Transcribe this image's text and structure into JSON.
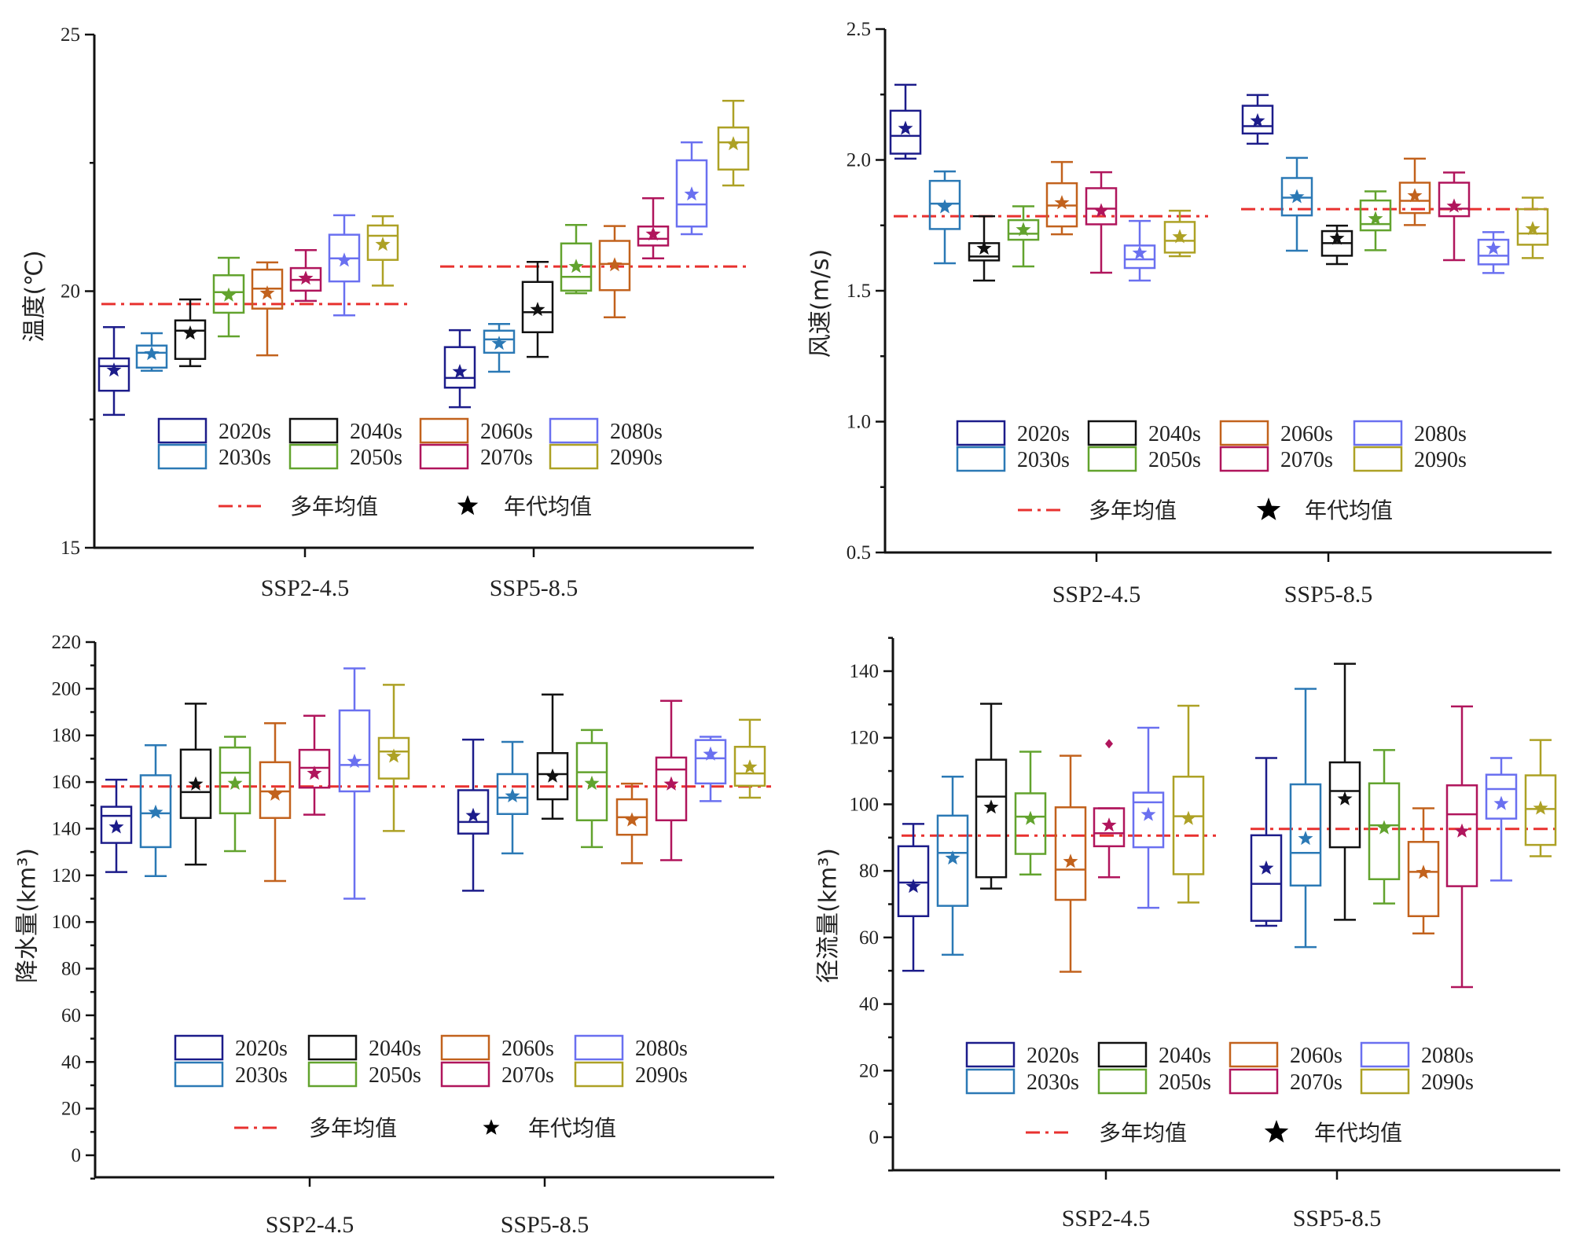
{
  "chart_data": [
    {
      "type": "box",
      "title": "",
      "ylabel": "温度(℃)",
      "xlabel": "",
      "ylim": [
        15,
        25
      ],
      "yticks": [
        15,
        20,
        25
      ],
      "ytick_labels": [
        "15",
        "20",
        "25"
      ],
      "minor_yticks": [
        17.5,
        22.5
      ],
      "categories": [
        "SSP2-4.5",
        "SSP5-8.5"
      ],
      "series_names": [
        "2020s",
        "2030s",
        "2040s",
        "2050s",
        "2060s",
        "2070s",
        "2080s",
        "2090s"
      ],
      "groups": [
        {
          "scenario": "SSP2-4.5",
          "multi_year_mean": 19.75,
          "boxes": [
            {
              "decade": "2020s",
              "min": 17.59,
              "q1": 18.06,
              "median": 18.54,
              "q3": 18.69,
              "max": 19.3,
              "mean": 18.46
            },
            {
              "decade": "2030s",
              "min": 18.45,
              "q1": 18.51,
              "median": 18.8,
              "q3": 18.94,
              "max": 19.18,
              "mean": 18.78
            },
            {
              "decade": "2040s",
              "min": 18.54,
              "q1": 18.68,
              "median": 19.23,
              "q3": 19.43,
              "max": 19.84,
              "mean": 19.18
            },
            {
              "decade": "2050s",
              "min": 19.12,
              "q1": 19.58,
              "median": 19.98,
              "q3": 20.31,
              "max": 20.65,
              "mean": 19.92
            },
            {
              "decade": "2060s",
              "min": 18.75,
              "q1": 19.66,
              "median": 20.05,
              "q3": 20.42,
              "max": 20.56,
              "mean": 19.96
            },
            {
              "decade": "2070s",
              "min": 19.81,
              "q1": 20.01,
              "median": 20.22,
              "q3": 20.45,
              "max": 20.8,
              "mean": 20.25
            },
            {
              "decade": "2080s",
              "min": 19.53,
              "q1": 20.19,
              "median": 20.64,
              "q3": 21.1,
              "max": 21.48,
              "mean": 20.6
            },
            {
              "decade": "2090s",
              "min": 20.11,
              "q1": 20.61,
              "median": 21.08,
              "q3": 21.28,
              "max": 21.46,
              "mean": 20.91
            }
          ]
        },
        {
          "scenario": "SSP5-8.5",
          "multi_year_mean": 20.48,
          "boxes": [
            {
              "decade": "2020s",
              "min": 17.74,
              "q1": 18.12,
              "median": 18.31,
              "q3": 18.91,
              "max": 19.24,
              "mean": 18.43
            },
            {
              "decade": "2030s",
              "min": 18.43,
              "q1": 18.8,
              "median": 19.06,
              "q3": 19.23,
              "max": 19.36,
              "mean": 18.98
            },
            {
              "decade": "2040s",
              "min": 18.72,
              "q1": 19.2,
              "median": 19.59,
              "q3": 20.18,
              "max": 20.57,
              "mean": 19.64
            },
            {
              "decade": "2050s",
              "min": 19.96,
              "q1": 20.01,
              "median": 20.28,
              "q3": 20.93,
              "max": 21.29,
              "mean": 20.48
            },
            {
              "decade": "2060s",
              "min": 19.49,
              "q1": 20.02,
              "median": 20.53,
              "q3": 20.98,
              "max": 21.27,
              "mean": 20.51
            },
            {
              "decade": "2070s",
              "min": 20.64,
              "q1": 20.89,
              "median": 21.02,
              "q3": 21.26,
              "max": 21.81,
              "mean": 21.11
            },
            {
              "decade": "2080s",
              "min": 21.11,
              "q1": 21.26,
              "median": 21.69,
              "q3": 22.55,
              "max": 22.9,
              "mean": 21.89
            },
            {
              "decade": "2090s",
              "min": 22.06,
              "q1": 22.37,
              "median": 22.9,
              "q3": 23.19,
              "max": 23.71,
              "mean": 22.87
            }
          ]
        }
      ]
    },
    {
      "type": "box",
      "title": "",
      "ylabel": "风速(m/s)",
      "xlabel": "",
      "ylim": [
        0.5,
        2.5
      ],
      "yticks": [
        0.5,
        1.0,
        1.5,
        2.0,
        2.5
      ],
      "ytick_labels": [
        "0.5",
        "1.0",
        "1.5",
        "2.0",
        "2.5"
      ],
      "minor_yticks": [
        0.75,
        1.25,
        1.75,
        2.25
      ],
      "categories": [
        "SSP2-4.5",
        "SSP5-8.5"
      ],
      "series_names": [
        "2020s",
        "2030s",
        "2040s",
        "2050s",
        "2060s",
        "2070s",
        "2080s",
        "2090s"
      ],
      "groups": [
        {
          "scenario": "SSP2-4.5",
          "multi_year_mean": 1.785,
          "boxes": [
            {
              "decade": "2020s",
              "min": 2.005,
              "q1": 2.024,
              "median": 2.092,
              "q3": 2.188,
              "max": 2.287,
              "mean": 2.12
            },
            {
              "decade": "2030s",
              "min": 1.605,
              "q1": 1.736,
              "median": 1.833,
              "q3": 1.92,
              "max": 1.956,
              "mean": 1.82
            },
            {
              "decade": "2040s",
              "min": 1.539,
              "q1": 1.616,
              "median": 1.631,
              "q3": 1.682,
              "max": 1.785,
              "mean": 1.662
            },
            {
              "decade": "2050s",
              "min": 1.593,
              "q1": 1.695,
              "median": 1.718,
              "q3": 1.77,
              "max": 1.823,
              "mean": 1.733
            },
            {
              "decade": "2060s",
              "min": 1.716,
              "q1": 1.746,
              "median": 1.826,
              "q3": 1.911,
              "max": 1.992,
              "mean": 1.836
            },
            {
              "decade": "2070s",
              "min": 1.569,
              "q1": 1.754,
              "median": 1.814,
              "q3": 1.892,
              "max": 1.953,
              "mean": 1.805
            },
            {
              "decade": "2080s",
              "min": 1.539,
              "q1": 1.587,
              "median": 1.62,
              "q3": 1.673,
              "max": 1.767,
              "mean": 1.644
            },
            {
              "decade": "2090s",
              "min": 1.632,
              "q1": 1.646,
              "median": 1.691,
              "q3": 1.763,
              "max": 1.806,
              "mean": 1.706
            }
          ]
        },
        {
          "scenario": "SSP5-8.5",
          "multi_year_mean": 1.812,
          "boxes": [
            {
              "decade": "2020s",
              "min": 2.062,
              "q1": 2.101,
              "median": 2.129,
              "q3": 2.207,
              "max": 2.248,
              "mean": 2.149
            },
            {
              "decade": "2030s",
              "min": 1.653,
              "q1": 1.788,
              "median": 1.856,
              "q3": 1.931,
              "max": 2.008,
              "mean": 1.859
            },
            {
              "decade": "2040s",
              "min": 1.602,
              "q1": 1.634,
              "median": 1.682,
              "q3": 1.728,
              "max": 1.749,
              "mean": 1.7
            },
            {
              "decade": "2050s",
              "min": 1.655,
              "q1": 1.731,
              "median": 1.755,
              "q3": 1.845,
              "max": 1.88,
              "mean": 1.775
            },
            {
              "decade": "2060s",
              "min": 1.751,
              "q1": 1.797,
              "median": 1.844,
              "q3": 1.913,
              "max": 2.005,
              "mean": 1.863
            },
            {
              "decade": "2070s",
              "min": 1.617,
              "q1": 1.785,
              "median": 1.814,
              "q3": 1.913,
              "max": 1.952,
              "mean": 1.823
            },
            {
              "decade": "2080s",
              "min": 1.568,
              "q1": 1.601,
              "median": 1.634,
              "q3": 1.695,
              "max": 1.724,
              "mean": 1.662
            },
            {
              "decade": "2090s",
              "min": 1.625,
              "q1": 1.676,
              "median": 1.719,
              "q3": 1.812,
              "max": 1.856,
              "mean": 1.737
            }
          ]
        }
      ]
    },
    {
      "type": "box",
      "title": "",
      "ylabel": "降水量(km³)",
      "xlabel": "",
      "ylim": [
        -9.4,
        220
      ],
      "yticks": [
        0,
        20,
        40,
        60,
        80,
        100,
        120,
        140,
        160,
        180,
        200,
        220
      ],
      "ytick_labels": [
        "0",
        "20",
        "40",
        "60",
        "80",
        "100",
        "120",
        "140",
        "160",
        "180",
        "200",
        "220"
      ],
      "minor_yticks": [
        -10,
        10,
        30,
        50,
        70,
        90,
        110,
        130,
        150,
        170,
        190,
        210
      ],
      "categories": [
        "SSP2-4.5",
        "SSP5-8.5"
      ],
      "series_names": [
        "2020s",
        "2030s",
        "2040s",
        "2050s",
        "2060s",
        "2070s",
        "2080s",
        "2090s"
      ],
      "groups": [
        {
          "scenario": "SSP2-4.5",
          "multi_year_mean": 158.1,
          "boxes": [
            {
              "decade": "2020s",
              "min": 121.4,
              "q1": 133.9,
              "median": 145.5,
              "q3": 149.4,
              "max": 161.0,
              "mean": 140.7
            },
            {
              "decade": "2030s",
              "min": 119.7,
              "q1": 132.1,
              "median": 146.6,
              "q3": 162.9,
              "max": 175.8,
              "mean": 147.0
            },
            {
              "decade": "2040s",
              "min": 124.6,
              "q1": 144.6,
              "median": 155.7,
              "q3": 173.9,
              "max": 193.6,
              "mean": 159.1
            },
            {
              "decade": "2050s",
              "min": 130.4,
              "q1": 146.6,
              "median": 164.0,
              "q3": 174.8,
              "max": 179.4,
              "mean": 159.4
            },
            {
              "decade": "2060s",
              "min": 117.6,
              "q1": 144.6,
              "median": 156.0,
              "q3": 168.5,
              "max": 185.2,
              "mean": 154.7
            },
            {
              "decade": "2070s",
              "min": 146.0,
              "q1": 157.6,
              "median": 166.1,
              "q3": 173.8,
              "max": 188.4,
              "mean": 163.7
            },
            {
              "decade": "2080s",
              "min": 110.0,
              "q1": 156.0,
              "median": 167.3,
              "q3": 190.7,
              "max": 208.7,
              "mean": 168.8
            },
            {
              "decade": "2090s",
              "min": 139.0,
              "q1": 161.5,
              "median": 173.1,
              "q3": 178.9,
              "max": 201.7,
              "mean": 171.0
            }
          ]
        },
        {
          "scenario": "SSP5-8.5",
          "multi_year_mean": 158.1,
          "boxes": [
            {
              "decade": "2020s",
              "min": 113.4,
              "q1": 137.9,
              "median": 142.9,
              "q3": 156.5,
              "max": 178.2,
              "mean": 145.6
            },
            {
              "decade": "2030s",
              "min": 129.4,
              "q1": 146.3,
              "median": 153.3,
              "q3": 163.4,
              "max": 177.2,
              "mean": 154.0
            },
            {
              "decade": "2040s",
              "min": 144.3,
              "q1": 152.6,
              "median": 163.4,
              "q3": 172.4,
              "max": 197.5,
              "mean": 162.5
            },
            {
              "decade": "2050s",
              "min": 132.1,
              "q1": 143.6,
              "median": 164.2,
              "q3": 176.7,
              "max": 182.3,
              "mean": 159.4
            },
            {
              "decade": "2060s",
              "min": 125.2,
              "q1": 137.4,
              "median": 144.9,
              "q3": 152.6,
              "max": 159.3,
              "mean": 143.7
            },
            {
              "decade": "2070s",
              "min": 126.5,
              "q1": 143.6,
              "median": 165.4,
              "q3": 170.5,
              "max": 194.8,
              "mean": 159.1
            },
            {
              "decade": "2080s",
              "min": 151.8,
              "q1": 159.4,
              "median": 170.2,
              "q3": 178.0,
              "max": 179.4,
              "mean": 171.9
            },
            {
              "decade": "2090s",
              "min": 153.3,
              "q1": 158.4,
              "median": 163.7,
              "q3": 175.1,
              "max": 186.7,
              "mean": 166.4
            }
          ]
        }
      ]
    },
    {
      "type": "box",
      "title": "",
      "ylabel": "径流量(km³)",
      "xlabel": "",
      "ylim": [
        -10,
        150
      ],
      "yticks": [
        0,
        20,
        40,
        60,
        80,
        100,
        120,
        140
      ],
      "ytick_labels": [
        "0",
        "20",
        "40",
        "60",
        "80",
        "100",
        "120",
        "140"
      ],
      "minor_yticks": [
        -10,
        10,
        30,
        50,
        70,
        90,
        110,
        130,
        150
      ],
      "categories": [
        "SSP2-4.5",
        "SSP5-8.5"
      ],
      "series_names": [
        "2020s",
        "2030s",
        "2040s",
        "2050s",
        "2060s",
        "2070s",
        "2080s",
        "2090s"
      ],
      "groups": [
        {
          "scenario": "SSP2-4.5",
          "multi_year_mean": 90.6,
          "boxes": [
            {
              "decade": "2020s",
              "min": 50.0,
              "q1": 66.4,
              "median": 76.5,
              "q3": 87.4,
              "max": 94.1,
              "mean": 75.3
            },
            {
              "decade": "2030s",
              "min": 54.8,
              "q1": 69.5,
              "median": 85.4,
              "q3": 96.6,
              "max": 108.3,
              "mean": 83.8
            },
            {
              "decade": "2040s",
              "min": 74.7,
              "q1": 78.1,
              "median": 102.3,
              "q3": 113.4,
              "max": 130.2,
              "mean": 99.1
            },
            {
              "decade": "2050s",
              "min": 78.9,
              "q1": 85.1,
              "median": 96.3,
              "q3": 103.3,
              "max": 115.8,
              "mean": 95.7
            },
            {
              "decade": "2060s",
              "min": 49.7,
              "q1": 71.3,
              "median": 80.4,
              "q3": 99.1,
              "max": 114.6,
              "mean": 82.8
            },
            {
              "decade": "2070s",
              "min": 78.1,
              "q1": 87.4,
              "median": 91.3,
              "q3": 98.8,
              "max": 98.8,
              "mean": 93.7,
              "outliers": [
                118.2
              ]
            },
            {
              "decade": "2080s",
              "min": 68.9,
              "q1": 87.1,
              "median": 100.6,
              "q3": 103.5,
              "max": 123.0,
              "mean": 96.9
            },
            {
              "decade": "2090s",
              "min": 70.5,
              "q1": 79.0,
              "median": 96.4,
              "q3": 108.3,
              "max": 129.6,
              "mean": 95.7
            }
          ]
        },
        {
          "scenario": "SSP5-8.5",
          "multi_year_mean": 92.6,
          "boxes": [
            {
              "decade": "2020s",
              "min": 63.5,
              "q1": 65.0,
              "median": 76.1,
              "q3": 90.7,
              "max": 113.9,
              "mean": 80.8
            },
            {
              "decade": "2030s",
              "min": 57.1,
              "q1": 75.6,
              "median": 85.4,
              "q3": 106.0,
              "max": 134.7,
              "mean": 89.7
            },
            {
              "decade": "2040s",
              "min": 65.3,
              "q1": 87.1,
              "median": 104.0,
              "q3": 112.6,
              "max": 142.2,
              "mean": 101.6
            },
            {
              "decade": "2050s",
              "min": 70.2,
              "q1": 77.5,
              "median": 93.7,
              "q3": 106.3,
              "max": 116.3,
              "mean": 92.9
            },
            {
              "decade": "2060s",
              "min": 61.2,
              "q1": 66.4,
              "median": 79.7,
              "q3": 88.7,
              "max": 98.8,
              "mean": 79.5
            },
            {
              "decade": "2070s",
              "min": 45.1,
              "q1": 75.4,
              "median": 97.0,
              "q3": 105.7,
              "max": 129.4,
              "mean": 91.9
            },
            {
              "decade": "2080s",
              "min": 77.1,
              "q1": 95.7,
              "median": 104.6,
              "q3": 108.9,
              "max": 113.9,
              "mean": 100.2
            },
            {
              "decade": "2090s",
              "min": 84.4,
              "q1": 87.8,
              "median": 98.6,
              "q3": 108.7,
              "max": 119.3,
              "mean": 98.8
            }
          ]
        }
      ]
    }
  ],
  "colors": {
    "2020s": "#1c1c8a",
    "2030s": "#2b79b5",
    "2040s": "#111111",
    "2050s": "#62a32e",
    "2060s": "#c2621d",
    "2070s": "#b0155c",
    "2080s": "#6a70f0",
    "2090s": "#ada125",
    "mean_line": "#e8312f",
    "axis": "#111111"
  },
  "legend": {
    "decades": [
      "2020s",
      "2030s",
      "2040s",
      "2050s",
      "2060s",
      "2070s",
      "2080s",
      "2090s"
    ],
    "multi_year_mean_label": "多年均值",
    "decade_mean_label": "年代均值"
  }
}
